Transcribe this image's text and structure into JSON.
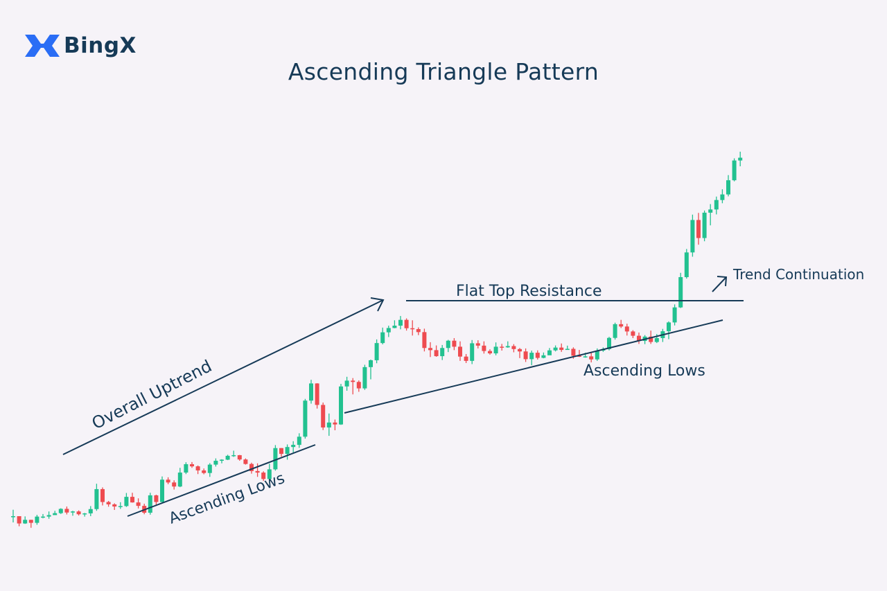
{
  "brand": {
    "name": "BingX",
    "logo_icon": "bingx-logo-icon",
    "accent": "#2a6df5"
  },
  "chart_data": {
    "type": "candlestick",
    "title": "Ascending Triangle Pattern",
    "colors": {
      "up": "#22c190",
      "down": "#ee4b50",
      "line": "#163a57"
    },
    "candles": [
      [
        100,
        100,
        103,
        97.1
      ],
      [
        100,
        96.6,
        100,
        95.3
      ],
      [
        96.6,
        98.3,
        99.9,
        96.4
      ],
      [
        98.3,
        96.9,
        98.3,
        94.6
      ],
      [
        96.9,
        99.8,
        100.6,
        96
      ],
      [
        99.8,
        99.8,
        101,
        99
      ],
      [
        99.8,
        100.5,
        102.2,
        98.8
      ],
      [
        100.5,
        101.4,
        102.5,
        100.7
      ],
      [
        101.4,
        103.4,
        103.7,
        101
      ],
      [
        103.4,
        101.7,
        104.5,
        100.8
      ],
      [
        101.7,
        102.2,
        102.5,
        100.2
      ],
      [
        102.2,
        100.9,
        102.7,
        100.3
      ],
      [
        100.9,
        101.3,
        101.5,
        99.8
      ],
      [
        101.3,
        103.3,
        104.7,
        100
      ],
      [
        103.3,
        112.6,
        115.1,
        102.5
      ],
      [
        112.6,
        106.6,
        113.4,
        105
      ],
      [
        106.6,
        105.5,
        107.1,
        104.4
      ],
      [
        105.5,
        104.5,
        106,
        102.9
      ],
      [
        104.5,
        104.7,
        106.5,
        103.4
      ],
      [
        104.7,
        109,
        110.8,
        104.3
      ],
      [
        109,
        106.4,
        110.9,
        106.3
      ],
      [
        106.4,
        104.8,
        108.3,
        103.6
      ],
      [
        104.8,
        101.6,
        105.8,
        100.9
      ],
      [
        101.6,
        109.7,
        110.9,
        100.7
      ],
      [
        109.7,
        106.6,
        110,
        104.8
      ],
      [
        106.6,
        117,
        118.5,
        106.4
      ],
      [
        117,
        115.7,
        118.1,
        114.9
      ],
      [
        115.7,
        113.8,
        116.7,
        112.4
      ],
      [
        113.8,
        120.3,
        122.5,
        113.5
      ],
      [
        120.3,
        124.2,
        125.1,
        119.6
      ],
      [
        124.2,
        123.2,
        125.2,
        122.5
      ],
      [
        123.2,
        121.3,
        123.6,
        119.6
      ],
      [
        121.3,
        120.1,
        122.2,
        119.5
      ],
      [
        120.1,
        124,
        124.7,
        118.3
      ],
      [
        124,
        125.8,
        126.9,
        123.1
      ],
      [
        125.8,
        126.3,
        126.5,
        124.6
      ],
      [
        126.3,
        128.1,
        128.6,
        126.1
      ],
      [
        128.1,
        128.4,
        130.5,
        127.6
      ],
      [
        128.4,
        126.4,
        128.5,
        125.8
      ],
      [
        126.4,
        124.3,
        126.9,
        124
      ],
      [
        124.3,
        121,
        124.9,
        119.8
      ],
      [
        121,
        120.3,
        124.6,
        118.3
      ],
      [
        120.3,
        117.3,
        120.9,
        116.4
      ],
      [
        117.3,
        121.8,
        124.4,
        115.5
      ],
      [
        121.8,
        131.7,
        133.1,
        121.2
      ],
      [
        131.7,
        129,
        131.7,
        127.7
      ],
      [
        129,
        132.2,
        133.4,
        126.3
      ],
      [
        132.2,
        133.2,
        134.9,
        129.7
      ],
      [
        133.2,
        137,
        138.6,
        131.8
      ],
      [
        137,
        153.8,
        154.6,
        136.1
      ],
      [
        153.8,
        161.8,
        163.5,
        152.4
      ],
      [
        161.8,
        151.8,
        161.9,
        150.1
      ],
      [
        151.8,
        141.3,
        152.9,
        140.1
      ],
      [
        141.3,
        143.6,
        147.8,
        137.4
      ],
      [
        143.6,
        142.7,
        145,
        140
      ],
      [
        142.7,
        160.4,
        161.6,
        142.5
      ],
      [
        160.4,
        163.1,
        164.9,
        158.4
      ],
      [
        163.1,
        162.5,
        164.3,
        156.7
      ],
      [
        162.5,
        159.5,
        163.2,
        157.9
      ],
      [
        159.5,
        169.4,
        170.5,
        158.8
      ],
      [
        169.4,
        172.6,
        172.9,
        163.7
      ],
      [
        172.6,
        180.6,
        182.3,
        171.2
      ],
      [
        180.6,
        185.6,
        187.8,
        180
      ],
      [
        185.6,
        187.6,
        188.7,
        183.4
      ],
      [
        187.6,
        188.7,
        191.2,
        187.5
      ],
      [
        188.7,
        191.4,
        193.2,
        187
      ],
      [
        191.4,
        187.5,
        192.1,
        186.4
      ],
      [
        187.5,
        187.1,
        191.2,
        184.1
      ],
      [
        187.1,
        185.7,
        187.9,
        184.3
      ],
      [
        185.7,
        178.3,
        187.3,
        176.7
      ],
      [
        178.3,
        177.3,
        181,
        174.1
      ],
      [
        177.3,
        174.5,
        179.5,
        174.2
      ],
      [
        174.5,
        178.3,
        179.7,
        172.7
      ],
      [
        178.3,
        181.7,
        182.1,
        176.4
      ],
      [
        181.7,
        178.9,
        182.9,
        177.3
      ],
      [
        178.9,
        174.3,
        181.4,
        172.3
      ],
      [
        174.3,
        172.3,
        175.5,
        171.3
      ],
      [
        172.3,
        180.5,
        182,
        170.8
      ],
      [
        180.5,
        179.4,
        181.9,
        178.1
      ],
      [
        179.4,
        176.9,
        181.4,
        175.7
      ],
      [
        176.9,
        175.8,
        177.7,
        175.2
      ],
      [
        175.8,
        178.9,
        180.9,
        174.9
      ],
      [
        178.9,
        178.6,
        180.2,
        177.1
      ],
      [
        178.6,
        179.2,
        181.4,
        178.4
      ],
      [
        179.2,
        177.8,
        180.1,
        176.3
      ],
      [
        177.8,
        176.7,
        178.3,
        173.6
      ],
      [
        176.7,
        173.1,
        178.1,
        171.8
      ],
      [
        173.1,
        176.1,
        177.1,
        170.3
      ],
      [
        176.1,
        173.7,
        177.2,
        172.9
      ],
      [
        173.7,
        174.9,
        176.2,
        173.5
      ],
      [
        174.9,
        177.2,
        178.3,
        175.8
      ],
      [
        177.2,
        178.5,
        179.5,
        176.7
      ],
      [
        178.5,
        177.4,
        180.4,
        176.5
      ],
      [
        177.4,
        177.9,
        179.4,
        177.5
      ],
      [
        177.9,
        174.7,
        178.6,
        173.3
      ],
      [
        174.7,
        174.4,
        177.4,
        174.1
      ],
      [
        174.4,
        174.4,
        176.1,
        173.8
      ],
      [
        174.4,
        173,
        176.5,
        171.6
      ],
      [
        173,
        177.1,
        178.1,
        172.3
      ],
      [
        177.1,
        177.8,
        178.6,
        176.5
      ],
      [
        177.8,
        183,
        183.5,
        177.2
      ],
      [
        183,
        189.4,
        190.1,
        182.2
      ],
      [
        189.4,
        188.3,
        191.4,
        187.6
      ],
      [
        188.3,
        186,
        189.6,
        184.1
      ],
      [
        186,
        184,
        186.6,
        182.9
      ],
      [
        184,
        181.6,
        185.5,
        180.2
      ],
      [
        181.6,
        183.6,
        184.3,
        180.1
      ],
      [
        183.6,
        181.1,
        186.4,
        180.2
      ],
      [
        181.1,
        182.9,
        184.8,
        180.6
      ],
      [
        182.9,
        186.1,
        187.2,
        181.1
      ],
      [
        186.1,
        190.2,
        190.7,
        182.4
      ],
      [
        190.2,
        197.2,
        198.6,
        188.8
      ],
      [
        197.2,
        211.3,
        213.3,
        196.9
      ],
      [
        211.3,
        222.8,
        224.4,
        210.6
      ],
      [
        222.8,
        237.9,
        240.4,
        220.8
      ],
      [
        237.9,
        229.5,
        241.2,
        226.4
      ],
      [
        229.5,
        241.3,
        242.3,
        228
      ],
      [
        241.3,
        242.8,
        245.3,
        235.4
      ],
      [
        242.8,
        247.2,
        248.8,
        240.5
      ],
      [
        247.2,
        249.8,
        252.2,
        245.7
      ],
      [
        249.8,
        256.4,
        258.8,
        248.9
      ],
      [
        256.4,
        265.6,
        266.6,
        255.9
      ],
      [
        265.6,
        266.9,
        269.7,
        262.9
      ]
    ],
    "annotations": [
      "Overall Uptrend",
      "Ascending Lows",
      "Flat Top Resistance",
      "Ascending Lows",
      "Trend Continuation"
    ]
  }
}
